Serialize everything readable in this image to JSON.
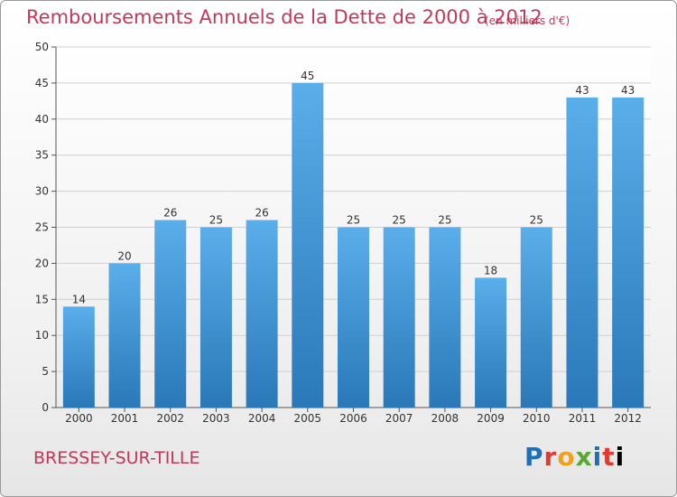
{
  "title": "Remboursements Annuels de la Dette de 2000 à 2012",
  "subtitle": "(en milliers d'€)",
  "commune": "BRESSEY-SUR-TILLE",
  "logo": "Proxiti",
  "colors": {
    "title": "#c0395a",
    "bar_top": "#5aaeea",
    "bar_bottom": "#2a78b8",
    "grid": "#d0d0d0"
  },
  "chart_data": {
    "type": "bar",
    "title": "Remboursements Annuels de la Dette de 2000 à 2012",
    "subtitle": "(en milliers d'€)",
    "categories": [
      "2000",
      "2001",
      "2002",
      "2003",
      "2004",
      "2005",
      "2006",
      "2007",
      "2008",
      "2009",
      "2010",
      "2011",
      "2012"
    ],
    "values": [
      14,
      20,
      26,
      25,
      26,
      45,
      25,
      25,
      25,
      18,
      25,
      43,
      43
    ],
    "ylim": [
      0,
      50
    ],
    "yticks": [
      0,
      5,
      10,
      15,
      20,
      25,
      30,
      35,
      40,
      45,
      50
    ],
    "grid": true
  }
}
